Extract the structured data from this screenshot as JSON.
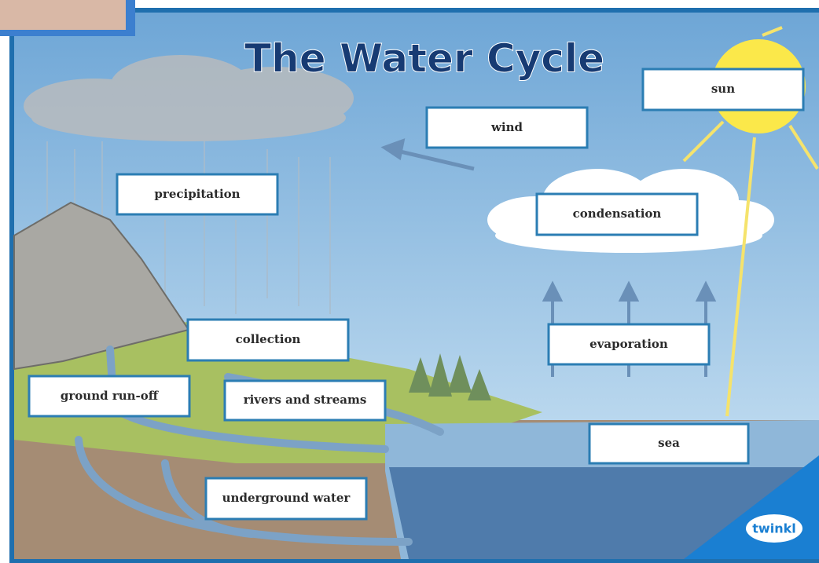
{
  "title": "The Water Cycle",
  "labels": {
    "sun": "sun",
    "wind": "wind",
    "precipitation": "precipitation",
    "condensation": "condensation",
    "evaporation": "evaporation",
    "collection": "collection",
    "ground_run_off": "ground run-off",
    "rivers_and_streams": "rivers and streams",
    "sea": "sea",
    "underground_water": "underground water"
  },
  "logo": "twinkl"
}
